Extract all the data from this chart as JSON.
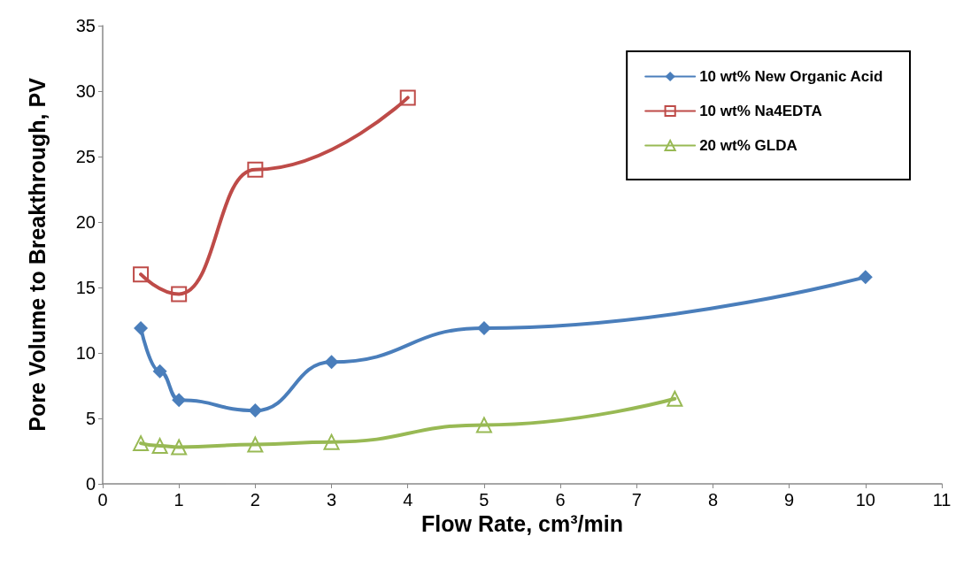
{
  "chart_data": {
    "type": "line",
    "xlabel": "Flow Rate, cm³/min",
    "ylabel": "Pore Volume to Breakthrough, PV",
    "xlim": [
      0,
      11
    ],
    "xticks": [
      0,
      1,
      2,
      3,
      4,
      5,
      6,
      7,
      8,
      9,
      10,
      11
    ],
    "ylim": [
      0,
      35
    ],
    "yticks": [
      0,
      5,
      10,
      15,
      20,
      25,
      30,
      35
    ],
    "grid": false,
    "legend": "top right",
    "line_style": "solid",
    "series": [
      {
        "name": "10 wt% New Organic Acid",
        "color": "#4a7ebb",
        "marker": "diamond",
        "x": [
          0.5,
          0.75,
          1,
          2,
          3,
          5,
          10
        ],
        "values": [
          11.9,
          8.6,
          6.4,
          5.6,
          9.3,
          11.9,
          15.8
        ]
      },
      {
        "name": "10 wt% Na4EDTA",
        "color": "#be4b48",
        "marker": "square",
        "x": [
          0.5,
          1,
          2,
          4
        ],
        "values": [
          16,
          14.5,
          24,
          29.5
        ]
      },
      {
        "name": "20 wt% GLDA",
        "color": "#98b954",
        "marker": "triangle",
        "x": [
          0.5,
          0.75,
          1,
          2,
          3,
          5,
          7.5
        ],
        "values": [
          3.1,
          2.9,
          2.8,
          3,
          3.2,
          4.5,
          6.5
        ]
      }
    ]
  }
}
